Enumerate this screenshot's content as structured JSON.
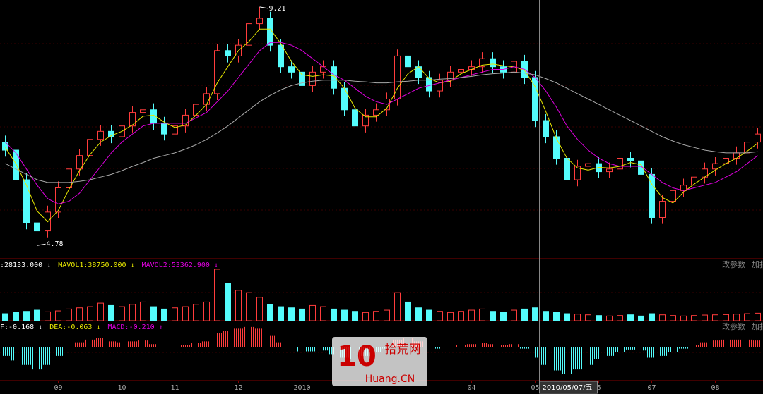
{
  "chart_data": [
    {
      "type": "candlestick",
      "xlim": [
        -0.5,
        71.5
      ],
      "ylim": [
        4.56,
        9.34
      ],
      "up_color": "#ff3c3c",
      "down_color": "#54fcfc",
      "open": [
        6.7,
        6.55,
        6.0,
        5.2,
        5.05,
        5.4,
        5.85,
        6.2,
        6.45,
        6.75,
        6.9,
        6.8,
        7.0,
        7.25,
        7.3,
        7.05,
        6.85,
        7.0,
        7.2,
        7.4,
        7.6,
        8.4,
        8.3,
        8.5,
        8.9,
        9.0,
        8.5,
        8.1,
        8.0,
        7.75,
        8.0,
        8.1,
        7.7,
        7.3,
        7.0,
        7.2,
        7.3,
        7.5,
        8.3,
        8.1,
        7.9,
        7.65,
        7.85,
        8.0,
        8.05,
        8.1,
        8.25,
        8.1,
        8.0,
        8.2,
        7.9,
        7.1,
        6.8,
        6.4,
        6.0,
        6.25,
        6.3,
        6.15,
        6.2,
        6.4,
        6.35,
        6.1,
        5.3,
        5.6,
        5.8,
        5.9,
        6.05,
        6.2,
        6.3,
        6.4,
        6.5,
        6.7
      ],
      "high": [
        6.82,
        6.67,
        6.12,
        5.32,
        5.52,
        5.97,
        6.32,
        6.57,
        6.87,
        7.02,
        7.02,
        7.12,
        7.37,
        7.42,
        7.42,
        7.17,
        7.12,
        7.32,
        7.52,
        7.72,
        8.52,
        8.52,
        8.62,
        9.02,
        9.21,
        9.12,
        8.62,
        8.22,
        8.12,
        8.12,
        8.22,
        8.22,
        7.82,
        7.42,
        7.32,
        7.42,
        7.62,
        8.42,
        8.42,
        8.22,
        8.02,
        7.97,
        8.12,
        8.17,
        8.22,
        8.37,
        8.37,
        8.22,
        8.32,
        8.32,
        8.02,
        7.22,
        6.92,
        6.52,
        6.37,
        6.42,
        6.42,
        6.32,
        6.52,
        6.52,
        6.47,
        6.22,
        5.72,
        5.92,
        6.02,
        6.17,
        6.32,
        6.42,
        6.52,
        6.62,
        6.82,
        6.97
      ],
      "low": [
        6.43,
        5.88,
        5.08,
        4.78,
        4.93,
        5.28,
        5.73,
        6.08,
        6.33,
        6.63,
        6.68,
        6.68,
        6.88,
        7.13,
        6.93,
        6.73,
        6.73,
        6.88,
        7.08,
        7.28,
        7.48,
        8.18,
        8.18,
        8.38,
        8.78,
        8.38,
        7.98,
        7.88,
        7.63,
        7.63,
        7.88,
        7.58,
        7.18,
        6.88,
        6.88,
        7.08,
        7.18,
        7.38,
        7.98,
        7.78,
        7.53,
        7.53,
        7.73,
        7.88,
        7.93,
        7.98,
        7.98,
        7.88,
        7.88,
        7.78,
        6.98,
        6.68,
        6.28,
        5.88,
        5.88,
        6.13,
        6.03,
        6.03,
        6.08,
        6.23,
        5.98,
        5.18,
        5.18,
        5.48,
        5.68,
        5.78,
        5.93,
        6.08,
        6.18,
        6.28,
        6.38,
        6.58
      ],
      "close": [
        6.55,
        6.0,
        5.2,
        5.05,
        5.4,
        5.85,
        6.2,
        6.45,
        6.75,
        6.9,
        6.8,
        7.0,
        7.25,
        7.3,
        7.05,
        6.85,
        7.0,
        7.2,
        7.4,
        7.6,
        8.4,
        8.3,
        8.5,
        8.9,
        9.0,
        8.5,
        8.1,
        8.0,
        7.75,
        8.0,
        8.1,
        7.7,
        7.3,
        7.0,
        7.2,
        7.3,
        7.5,
        8.3,
        8.1,
        7.9,
        7.65,
        7.85,
        8.0,
        8.05,
        8.1,
        8.25,
        8.1,
        8.0,
        8.2,
        7.9,
        7.1,
        6.8,
        6.4,
        6.0,
        6.25,
        6.3,
        6.15,
        6.2,
        6.4,
        6.35,
        6.1,
        5.3,
        5.6,
        5.8,
        5.9,
        6.05,
        6.2,
        6.3,
        6.4,
        6.5,
        6.7,
        6.85
      ],
      "lines": [
        {
          "color": "#e8e800",
          "values": [
            6.6,
            6.3,
            5.9,
            5.42,
            5.22,
            5.43,
            5.82,
            6.17,
            6.47,
            6.7,
            6.82,
            6.9,
            7.02,
            7.18,
            7.2,
            7.07,
            6.97,
            7.02,
            7.2,
            7.4,
            7.8,
            8.1,
            8.4,
            8.57,
            8.8,
            8.8,
            8.53,
            8.2,
            7.95,
            7.92,
            7.95,
            7.93,
            7.7,
            7.33,
            7.17,
            7.17,
            7.33,
            7.7,
            7.97,
            8.1,
            7.88,
            7.8,
            7.83,
            7.97,
            8.05,
            8.13,
            8.15,
            8.12,
            8.1,
            8.03,
            7.73,
            7.27,
            6.77,
            6.4,
            6.22,
            6.18,
            6.23,
            6.22,
            6.25,
            6.32,
            6.28,
            5.92,
            5.67,
            5.57,
            5.77,
            5.92,
            6.05,
            6.18,
            6.3,
            6.4,
            6.53,
            6.68
          ]
        },
        {
          "color": "#e000e0",
          "values": [
            6.7,
            6.5,
            6.2,
            5.9,
            5.65,
            5.55,
            5.6,
            5.75,
            6.0,
            6.25,
            6.5,
            6.7,
            6.85,
            7.0,
            7.05,
            7.05,
            7.05,
            7.05,
            7.15,
            7.25,
            7.45,
            7.65,
            7.9,
            8.15,
            8.4,
            8.55,
            8.55,
            8.5,
            8.4,
            8.25,
            8.1,
            7.95,
            7.85,
            7.7,
            7.55,
            7.45,
            7.4,
            7.5,
            7.6,
            7.7,
            7.75,
            7.8,
            7.85,
            7.9,
            7.95,
            8.0,
            8.05,
            8.05,
            8.1,
            8.05,
            7.9,
            7.65,
            7.35,
            7.0,
            6.75,
            6.55,
            6.4,
            6.3,
            6.25,
            6.25,
            6.25,
            6.1,
            5.95,
            5.85,
            5.8,
            5.85,
            5.9,
            5.95,
            6.05,
            6.15,
            6.3,
            6.45
          ]
        },
        {
          "color": "#a8a8a8",
          "values": [
            6.3,
            6.2,
            6.1,
            6.0,
            5.95,
            5.95,
            5.95,
            5.97,
            6.0,
            6.05,
            6.1,
            6.17,
            6.25,
            6.32,
            6.4,
            6.45,
            6.5,
            6.57,
            6.65,
            6.75,
            6.87,
            7.0,
            7.15,
            7.3,
            7.45,
            7.57,
            7.67,
            7.75,
            7.8,
            7.83,
            7.85,
            7.85,
            7.85,
            7.83,
            7.82,
            7.8,
            7.8,
            7.82,
            7.83,
            7.85,
            7.85,
            7.87,
            7.88,
            7.9,
            7.92,
            7.95,
            7.97,
            7.98,
            8.0,
            7.98,
            7.95,
            7.88,
            7.8,
            7.7,
            7.6,
            7.5,
            7.4,
            7.3,
            7.2,
            7.1,
            7.0,
            6.9,
            6.8,
            6.72,
            6.65,
            6.6,
            6.55,
            6.52,
            6.5,
            6.5,
            6.5,
            6.52
          ]
        }
      ]
    },
    {
      "type": "bar",
      "xlim": [
        -0.5,
        71.5
      ],
      "ylim": [
        0,
        250000
      ],
      "values": [
        30000,
        35000,
        40000,
        45000,
        38000,
        42000,
        50000,
        55000,
        60000,
        75000,
        65000,
        60000,
        70000,
        80000,
        60000,
        50000,
        55000,
        60000,
        70000,
        80000,
        220000,
        160000,
        130000,
        120000,
        100000,
        70000,
        60000,
        55000,
        50000,
        65000,
        60000,
        50000,
        45000,
        40000,
        35000,
        40000,
        45000,
        120000,
        80000,
        55000,
        45000,
        40000,
        35000,
        40000,
        45000,
        50000,
        40000,
        35000,
        45000,
        50000,
        55000,
        40000,
        35000,
        30000,
        28000,
        25000,
        22000,
        20000,
        22000,
        25000,
        20000,
        30000,
        25000,
        22000,
        20000,
        22000,
        24000,
        25000,
        26000,
        28000,
        30000,
        32000
      ],
      "legend": [
        {
          "text": ":28133.000 ↓",
          "color": "#ffffff"
        },
        {
          "text": "MAVOL1:38750.000 ↓",
          "color": "#e8e800"
        },
        {
          "text": "MAVOL2:53362.900 ↓",
          "color": "#e000e0"
        }
      ],
      "buttons": [
        "改参数",
        "加指"
      ]
    },
    {
      "type": "bar",
      "xlim": [
        -0.5,
        71.5
      ],
      "ylim": [
        -0.35,
        0.25
      ],
      "values": [
        -0.1,
        -0.15,
        -0.2,
        -0.25,
        -0.2,
        -0.1,
        0.0,
        0.05,
        0.08,
        0.1,
        0.06,
        0.05,
        0.06,
        0.07,
        0.03,
        0.0,
        0.0,
        0.02,
        0.04,
        0.06,
        0.15,
        0.18,
        0.2,
        0.22,
        0.2,
        0.12,
        0.05,
        0.0,
        -0.05,
        -0.05,
        -0.04,
        -0.08,
        -0.12,
        -0.14,
        -0.1,
        -0.06,
        -0.02,
        0.08,
        0.1,
        0.06,
        0.0,
        -0.02,
        0.0,
        0.02,
        0.03,
        0.04,
        0.03,
        0.02,
        0.03,
        -0.02,
        -0.12,
        -0.2,
        -0.26,
        -0.3,
        -0.25,
        -0.2,
        -0.14,
        -0.1,
        -0.06,
        -0.03,
        -0.04,
        -0.12,
        -0.1,
        -0.06,
        -0.02,
        0.02,
        0.05,
        0.07,
        0.08,
        0.08,
        0.08,
        0.07
      ],
      "legend": [
        {
          "text": "F:-0.168 ↓",
          "color": "#ffffff"
        },
        {
          "text": "DEA:-0.063 ↓",
          "color": "#e8e800"
        },
        {
          "text": "MACD:-0.210 ↑",
          "color": "#e000e0"
        }
      ],
      "buttons": [
        "改参数",
        "加指"
      ],
      "xticks": [
        {
          "value": 5,
          "label": "09"
        },
        {
          "value": 11,
          "label": "10"
        },
        {
          "value": 16,
          "label": "11"
        },
        {
          "value": 22,
          "label": "12"
        },
        {
          "value": 28,
          "label": "2010"
        },
        {
          "value": 44,
          "label": "04"
        },
        {
          "value": 50,
          "label": "05"
        },
        {
          "value": 56,
          "label": "6"
        },
        {
          "value": 61,
          "label": "07"
        },
        {
          "value": 67,
          "label": "08"
        }
      ],
      "crosshair": {
        "value": 50.4,
        "label": "2010/05/07/五"
      }
    }
  ],
  "watermark": {
    "number": "10",
    "site": "Huang.CN",
    "name": "拾荒网"
  }
}
